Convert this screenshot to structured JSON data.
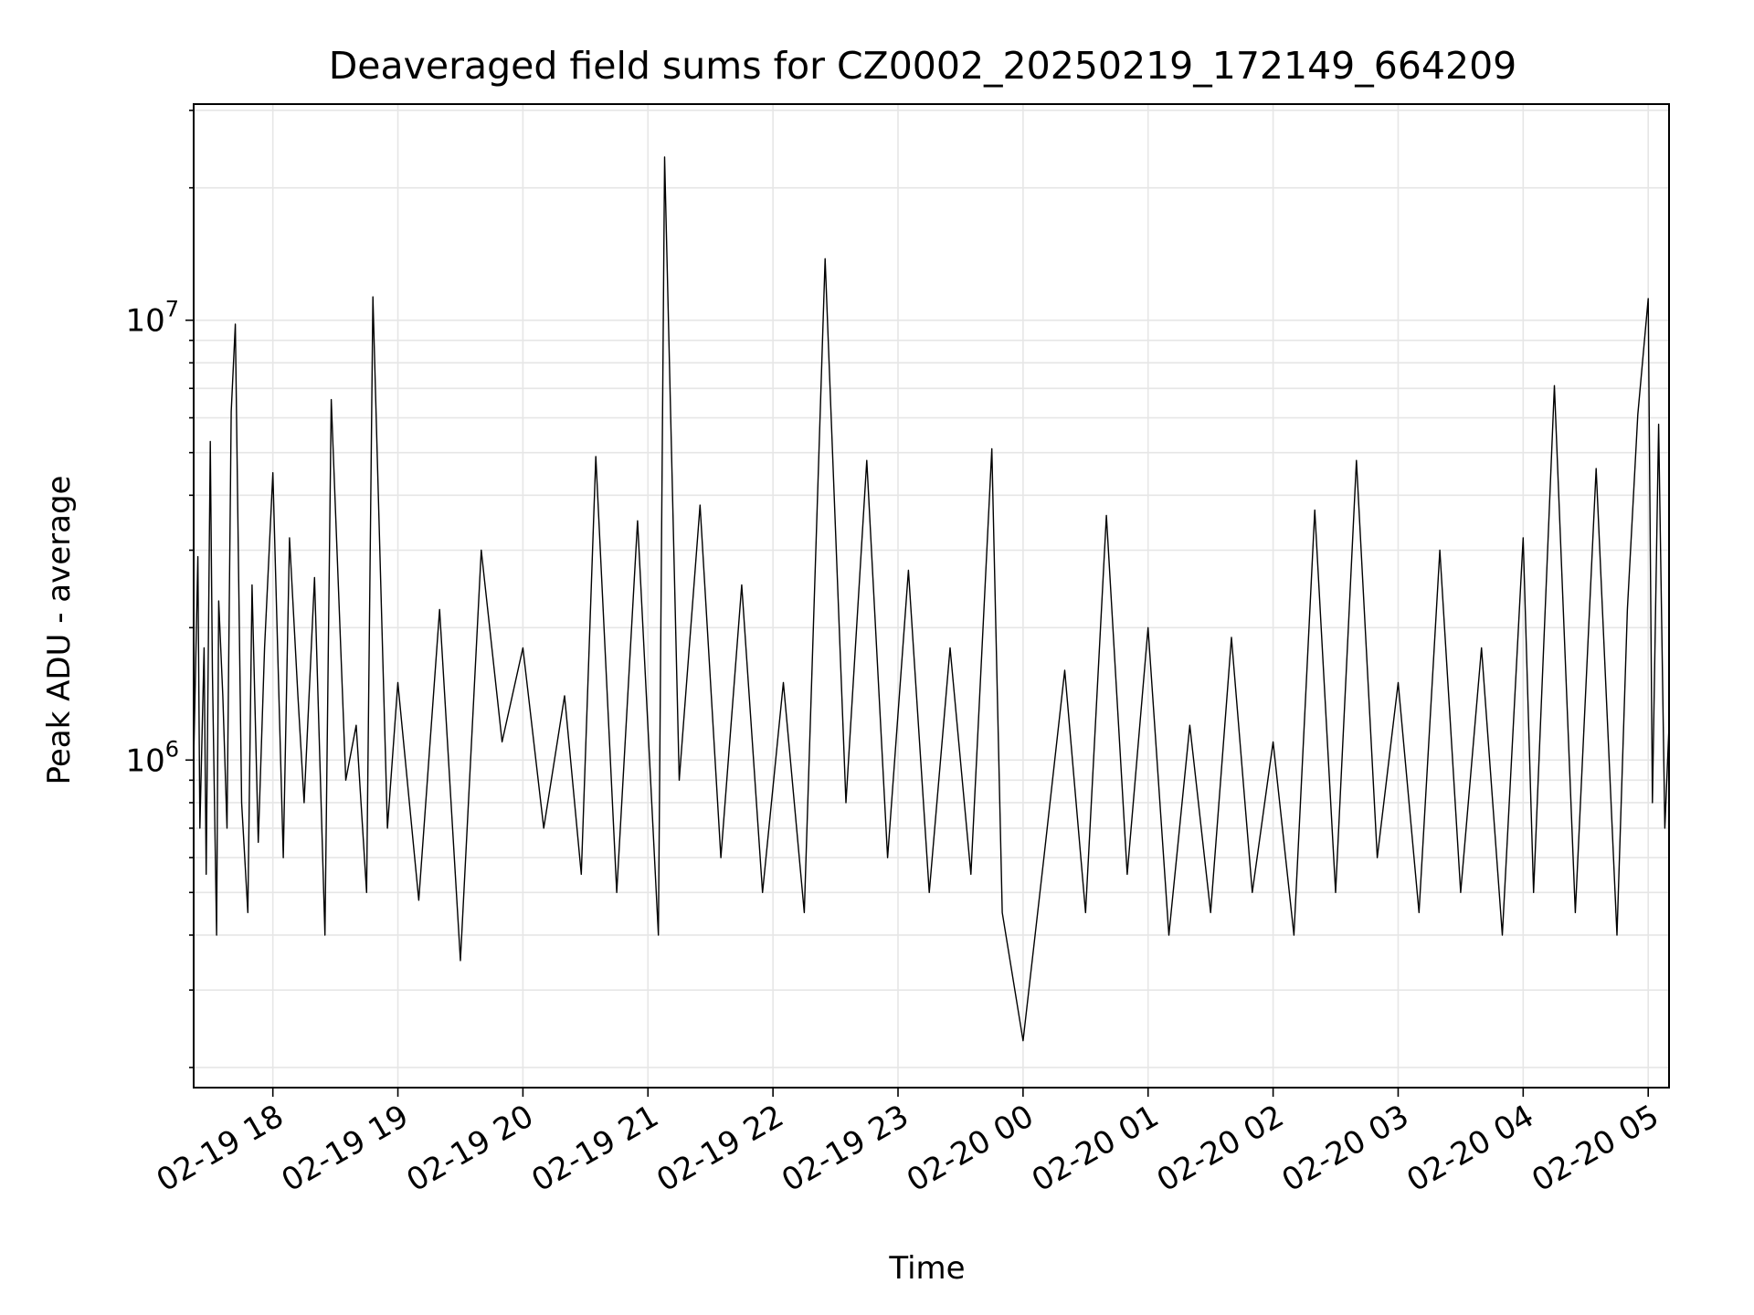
{
  "chart_data": {
    "type": "line",
    "title": "Deaveraged field sums for CZ0002_20250219_172149_664209",
    "xlabel": "Time",
    "ylabel": "Peak ADU - average",
    "x_tick_labels": [
      "02-19 18",
      "02-19 19",
      "02-19 20",
      "02-19 21",
      "02-19 22",
      "02-19 23",
      "02-20 00",
      "02-20 01",
      "02-20 02",
      "02-20 03",
      "02-20 04",
      "02-20 05"
    ],
    "x_ticks": [
      "2025-02-19 18:00",
      "2025-02-19 19:00",
      "2025-02-19 20:00",
      "2025-02-19 21:00",
      "2025-02-19 22:00",
      "2025-02-19 23:00",
      "2025-02-20 00:00",
      "2025-02-20 01:00",
      "2025-02-20 02:00",
      "2025-02-20 03:00",
      "2025-02-20 04:00",
      "2025-02-20 05:00"
    ],
    "xlim": [
      "2025-02-19 17:22",
      "2025-02-20 05:10"
    ],
    "y_tick_labels": [
      {
        "base": "10",
        "exp": "6",
        "value": 1000000
      },
      {
        "base": "10",
        "exp": "7",
        "value": 10000000
      }
    ],
    "yscale": "log",
    "ylim": [
      180000,
      31000000
    ],
    "grid": true,
    "line_color": "#000000",
    "grid_color": "#e6e6e6",
    "series": [
      {
        "x": [
          "2025-02-19 17:22",
          "2025-02-19 17:24",
          "2025-02-19 17:25",
          "2025-02-19 17:27",
          "2025-02-19 17:28",
          "2025-02-19 17:30",
          "2025-02-19 17:31",
          "2025-02-19 17:33",
          "2025-02-19 17:34",
          "2025-02-19 17:36",
          "2025-02-19 17:38",
          "2025-02-19 17:40",
          "2025-02-19 17:42",
          "2025-02-19 17:45",
          "2025-02-19 17:48",
          "2025-02-19 17:50",
          "2025-02-19 17:53",
          "2025-02-19 17:56",
          "2025-02-19 18:00",
          "2025-02-19 18:05",
          "2025-02-19 18:08",
          "2025-02-19 18:12",
          "2025-02-19 18:15",
          "2025-02-19 18:20",
          "2025-02-19 18:25",
          "2025-02-19 18:28",
          "2025-02-19 18:35",
          "2025-02-19 18:40",
          "2025-02-19 18:45",
          "2025-02-19 18:48",
          "2025-02-19 18:55",
          "2025-02-19 19:00",
          "2025-02-19 19:10",
          "2025-02-19 19:20",
          "2025-02-19 19:30",
          "2025-02-19 19:40",
          "2025-02-19 19:50",
          "2025-02-19 20:00",
          "2025-02-19 20:10",
          "2025-02-19 20:20",
          "2025-02-19 20:28",
          "2025-02-19 20:35",
          "2025-02-19 20:45",
          "2025-02-19 20:55",
          "2025-02-19 21:05",
          "2025-02-19 21:08",
          "2025-02-19 21:15",
          "2025-02-19 21:25",
          "2025-02-19 21:35",
          "2025-02-19 21:45",
          "2025-02-19 21:55",
          "2025-02-19 22:05",
          "2025-02-19 22:15",
          "2025-02-19 22:25",
          "2025-02-19 22:35",
          "2025-02-19 22:45",
          "2025-02-19 22:55",
          "2025-02-19 23:05",
          "2025-02-19 23:15",
          "2025-02-19 23:25",
          "2025-02-19 23:35",
          "2025-02-19 23:45",
          "2025-02-19 23:50",
          "2025-02-20 00:00",
          "2025-02-20 00:10",
          "2025-02-20 00:20",
          "2025-02-20 00:30",
          "2025-02-20 00:40",
          "2025-02-20 00:50",
          "2025-02-20 01:00",
          "2025-02-20 01:10",
          "2025-02-20 01:20",
          "2025-02-20 01:30",
          "2025-02-20 01:40",
          "2025-02-20 01:50",
          "2025-02-20 02:00",
          "2025-02-20 02:10",
          "2025-02-20 02:20",
          "2025-02-20 02:30",
          "2025-02-20 02:40",
          "2025-02-20 02:50",
          "2025-02-20 03:00",
          "2025-02-20 03:10",
          "2025-02-20 03:20",
          "2025-02-20 03:30",
          "2025-02-20 03:40",
          "2025-02-20 03:50",
          "2025-02-20 04:00",
          "2025-02-20 04:05",
          "2025-02-20 04:15",
          "2025-02-20 04:25",
          "2025-02-20 04:35",
          "2025-02-20 04:45",
          "2025-02-20 04:50",
          "2025-02-20 04:55",
          "2025-02-20 05:00",
          "2025-02-20 05:02",
          "2025-02-20 05:05",
          "2025-02-20 05:08",
          "2025-02-20 05:10"
        ],
        "y": [
          1000000,
          2900000,
          700000,
          1800000,
          550000,
          5300000,
          1600000,
          400000,
          2300000,
          1400000,
          700000,
          6200000,
          9800000,
          800000,
          450000,
          2500000,
          650000,
          1800000,
          4500000,
          600000,
          3200000,
          1400000,
          800000,
          2600000,
          400000,
          6600000,
          900000,
          1200000,
          500000,
          11300000,
          700000,
          1500000,
          480000,
          2200000,
          350000,
          3000000,
          1100000,
          1800000,
          700000,
          1400000,
          550000,
          4900000,
          500000,
          3500000,
          400000,
          23500000,
          900000,
          3800000,
          600000,
          2500000,
          500000,
          1500000,
          450000,
          13800000,
          800000,
          4800000,
          600000,
          2700000,
          500000,
          1800000,
          550000,
          5100000,
          450000,
          230000,
          600000,
          1600000,
          450000,
          3600000,
          550000,
          2000000,
          400000,
          1200000,
          450000,
          1900000,
          500000,
          1100000,
          400000,
          3700000,
          500000,
          4800000,
          600000,
          1500000,
          450000,
          3000000,
          500000,
          1800000,
          400000,
          3200000,
          500000,
          7100000,
          450000,
          4600000,
          400000,
          2200000,
          6100000,
          11200000,
          800000,
          5800000,
          700000,
          1200000
        ]
      }
    ]
  }
}
